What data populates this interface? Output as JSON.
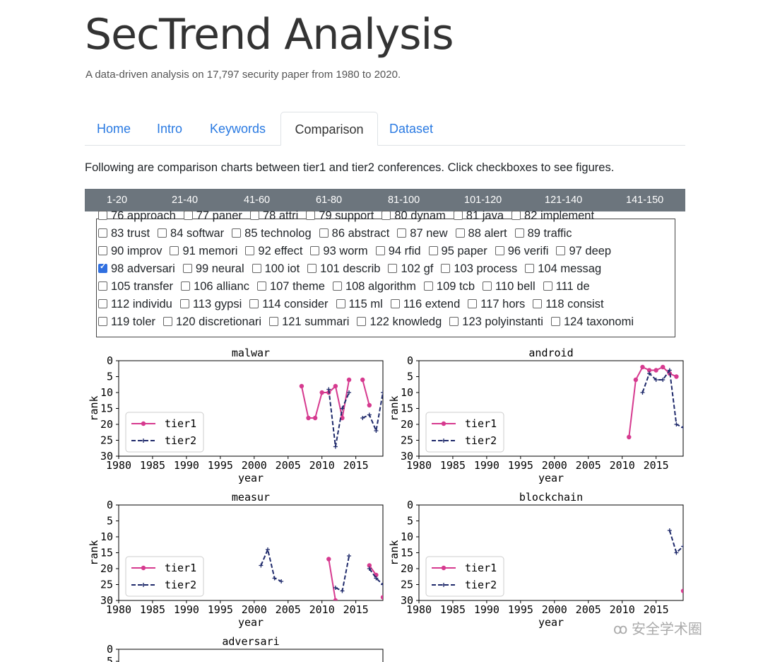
{
  "header": {
    "title": "SecTrend Analysis",
    "subtitle": "A data-driven analysis on 17,797 security paper from 1980 to 2020."
  },
  "tabs": [
    {
      "label": "Home",
      "active": false
    },
    {
      "label": "Intro",
      "active": false
    },
    {
      "label": "Keywords",
      "active": false
    },
    {
      "label": "Comparison",
      "active": true
    },
    {
      "label": "Dataset",
      "active": false
    }
  ],
  "description": "Following are comparison charts between tier1 and tier2 conferences. Click checkboxes to see figures.",
  "ranges": [
    "1-20",
    "21-40",
    "41-60",
    "61-80",
    "81-100",
    "101-120",
    "121-140",
    "141-150"
  ],
  "checkbox_rows": [
    [
      {
        "label": "76 approach",
        "checked": false
      },
      {
        "label": "77 paner",
        "checked": false
      },
      {
        "label": "78 attri",
        "checked": false
      },
      {
        "label": "79 support",
        "checked": false
      },
      {
        "label": "80 dynam",
        "checked": false
      },
      {
        "label": "81 java",
        "checked": false
      },
      {
        "label": "82 implement",
        "checked": false
      }
    ],
    [
      {
        "label": "83 trust",
        "checked": false
      },
      {
        "label": "84 softwar",
        "checked": false
      },
      {
        "label": "85 technolog",
        "checked": false
      },
      {
        "label": "86 abstract",
        "checked": false
      },
      {
        "label": "87 new",
        "checked": false
      },
      {
        "label": "88 alert",
        "checked": false
      },
      {
        "label": "89 traffic",
        "checked": false
      }
    ],
    [
      {
        "label": "90 improv",
        "checked": false
      },
      {
        "label": "91 memori",
        "checked": false
      },
      {
        "label": "92 effect",
        "checked": false
      },
      {
        "label": "93 worm",
        "checked": false
      },
      {
        "label": "94 rfid",
        "checked": false
      },
      {
        "label": "95 paper",
        "checked": false
      },
      {
        "label": "96 verifi",
        "checked": false
      },
      {
        "label": "97 deep",
        "checked": false
      }
    ],
    [
      {
        "label": "98 adversari",
        "checked": true
      },
      {
        "label": "99 neural",
        "checked": false
      },
      {
        "label": "100 iot",
        "checked": false
      },
      {
        "label": "101 describ",
        "checked": false
      },
      {
        "label": "102 gf",
        "checked": false
      },
      {
        "label": "103 process",
        "checked": false
      },
      {
        "label": "104 messag",
        "checked": false
      }
    ],
    [
      {
        "label": "105 transfer",
        "checked": false
      },
      {
        "label": "106 allianc",
        "checked": false
      },
      {
        "label": "107 theme",
        "checked": false
      },
      {
        "label": "108 algorithm",
        "checked": false
      },
      {
        "label": "109 tcb",
        "checked": false
      },
      {
        "label": "110 bell",
        "checked": false
      },
      {
        "label": "111 de",
        "checked": false
      }
    ],
    [
      {
        "label": "112 individu",
        "checked": false
      },
      {
        "label": "113 gypsi",
        "checked": false
      },
      {
        "label": "114 consider",
        "checked": false
      },
      {
        "label": "115 ml",
        "checked": false
      },
      {
        "label": "116 extend",
        "checked": false
      },
      {
        "label": "117 hors",
        "checked": false
      },
      {
        "label": "118 consist",
        "checked": false
      }
    ],
    [
      {
        "label": "119 toler",
        "checked": false
      },
      {
        "label": "120 discretionari",
        "checked": false
      },
      {
        "label": "121 summari",
        "checked": false
      },
      {
        "label": "122 knowledg",
        "checked": false
      },
      {
        "label": "123 polyinstanti",
        "checked": false
      },
      {
        "label": "124 taxonomi",
        "checked": false
      }
    ]
  ],
  "chart_data": [
    {
      "type": "line",
      "title": "malwar",
      "xlabel": "year",
      "ylabel": "rank",
      "xlim": [
        1980,
        2019
      ],
      "ylim": [
        30,
        0
      ],
      "xticks": [
        1980,
        1985,
        1990,
        1995,
        2000,
        2005,
        2010,
        2015
      ],
      "yticks": [
        0,
        5,
        10,
        15,
        20,
        25,
        30
      ],
      "legend": "lower-left",
      "series": [
        {
          "name": "tier1",
          "color": "#d63a8f",
          "style": "solid-dot",
          "points": [
            [
              2007,
              8
            ],
            [
              2008,
              18
            ],
            [
              2009,
              18
            ],
            [
              2010,
              10
            ],
            [
              2011,
              10
            ],
            [
              2012,
              8
            ],
            [
              2013,
              18
            ],
            [
              2014,
              6
            ],
            null,
            [
              2016,
              6
            ],
            [
              2017,
              14
            ]
          ]
        },
        {
          "name": "tier2",
          "color": "#1f2a6b",
          "style": "dashed-plus",
          "points": [
            [
              2011,
              9
            ],
            [
              2012,
              27
            ],
            [
              2013,
              15
            ],
            [
              2014,
              10
            ],
            null,
            [
              2016,
              18
            ],
            [
              2017,
              17
            ],
            [
              2018,
              22
            ],
            [
              2019,
              10
            ]
          ]
        }
      ]
    },
    {
      "type": "line",
      "title": "android",
      "xlabel": "year",
      "ylabel": "rank",
      "xlim": [
        1980,
        2019
      ],
      "ylim": [
        30,
        0
      ],
      "xticks": [
        1980,
        1985,
        1990,
        1995,
        2000,
        2005,
        2010,
        2015
      ],
      "yticks": [
        0,
        5,
        10,
        15,
        20,
        25,
        30
      ],
      "legend": "lower-left",
      "series": [
        {
          "name": "tier1",
          "color": "#d63a8f",
          "style": "solid-dot",
          "points": [
            [
              2011,
              24
            ],
            [
              2012,
              6
            ],
            [
              2013,
              2
            ],
            [
              2014,
              3
            ],
            [
              2015,
              3
            ],
            [
              2016,
              2
            ],
            [
              2017,
              4
            ],
            [
              2018,
              5
            ]
          ]
        },
        {
          "name": "tier2",
          "color": "#1f2a6b",
          "style": "dashed-plus",
          "points": [
            [
              2013,
              10
            ],
            [
              2014,
              4
            ],
            [
              2015,
              6
            ],
            [
              2016,
              6
            ],
            [
              2017,
              3
            ],
            [
              2018,
              20
            ],
            [
              2019,
              21
            ]
          ]
        }
      ]
    },
    {
      "type": "line",
      "title": "measur",
      "xlabel": "year",
      "ylabel": "rank",
      "xlim": [
        1980,
        2019
      ],
      "ylim": [
        30,
        0
      ],
      "xticks": [
        1980,
        1985,
        1990,
        1995,
        2000,
        2005,
        2010,
        2015
      ],
      "yticks": [
        0,
        5,
        10,
        15,
        20,
        25,
        30
      ],
      "legend": "lower-left",
      "series": [
        {
          "name": "tier1",
          "color": "#d63a8f",
          "style": "solid-dot",
          "points": [
            [
              2011,
              17
            ],
            [
              2012,
              30
            ],
            null,
            [
              2017,
              19
            ],
            [
              2018,
              22
            ],
            null,
            [
              2019,
              29
            ]
          ]
        },
        {
          "name": "tier2",
          "color": "#1f2a6b",
          "style": "dashed-plus",
          "points": [
            [
              2001,
              19
            ],
            [
              2002,
              14
            ],
            [
              2003,
              23
            ],
            [
              2004,
              24
            ],
            null,
            [
              2012,
              26
            ],
            [
              2013,
              27
            ],
            [
              2014,
              16
            ],
            null,
            [
              2017,
              20
            ],
            [
              2018,
              23
            ],
            [
              2019,
              25
            ]
          ]
        }
      ]
    },
    {
      "type": "line",
      "title": "blockchain",
      "xlabel": "year",
      "ylabel": "rank",
      "xlim": [
        1980,
        2019
      ],
      "ylim": [
        30,
        0
      ],
      "xticks": [
        1980,
        1985,
        1990,
        1995,
        2000,
        2005,
        2010,
        2015
      ],
      "yticks": [
        0,
        5,
        10,
        15,
        20,
        25,
        30
      ],
      "legend": "lower-left",
      "series": [
        {
          "name": "tier1",
          "color": "#d63a8f",
          "style": "solid-dot",
          "points": [
            [
              2019,
              27
            ]
          ]
        },
        {
          "name": "tier2",
          "color": "#1f2a6b",
          "style": "dashed-plus",
          "points": [
            [
              2017,
              8
            ],
            [
              2018,
              15
            ],
            [
              2019,
              13
            ]
          ]
        }
      ]
    },
    {
      "type": "line",
      "title": "adversari",
      "xlabel": "",
      "ylabel": "",
      "xlim": [
        1980,
        2019
      ],
      "ylim": [
        30,
        0
      ],
      "yticks": [
        0,
        5
      ],
      "partial": true,
      "series": []
    }
  ],
  "watermark": "安全学术圈"
}
